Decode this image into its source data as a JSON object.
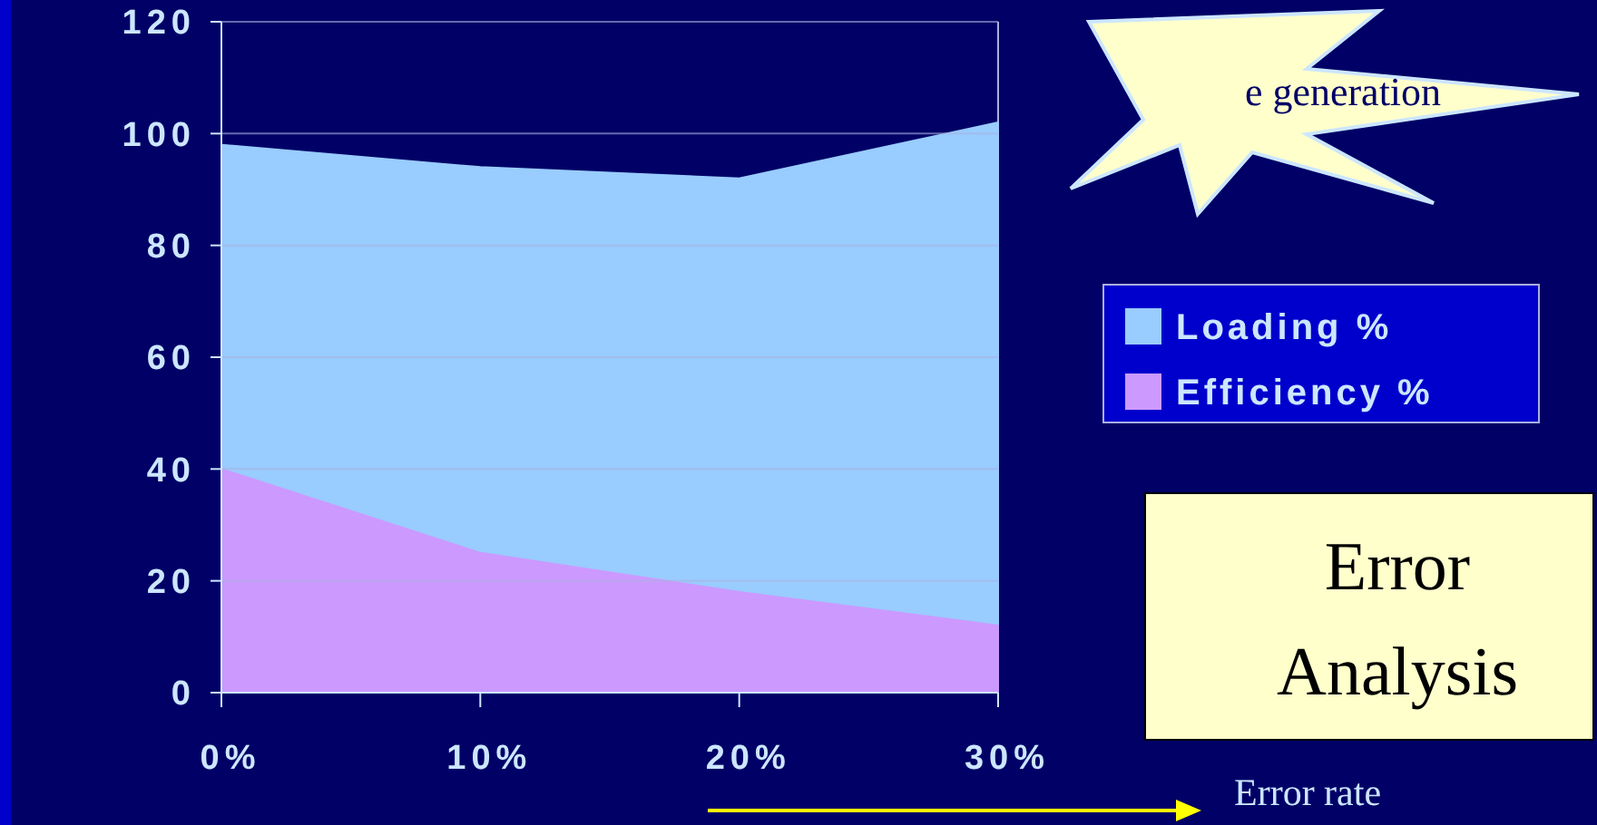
{
  "chart_data": {
    "type": "area",
    "categories": [
      "0%",
      "10%",
      "20%",
      "30%"
    ],
    "series": [
      {
        "name": "Loading %",
        "color": "#99ccff",
        "values": [
          98,
          94,
          92,
          102
        ]
      },
      {
        "name": "Efficiency %",
        "color": "#cc99ff",
        "values": [
          40,
          25,
          18,
          12
        ]
      }
    ],
    "ylim": [
      0,
      120
    ],
    "yticks": [
      0,
      20,
      40,
      60,
      80,
      100,
      120
    ],
    "grid": "y",
    "legend": "right",
    "xlabel": "Error rate",
    "annotations": [
      "e generation",
      "Error Analysis"
    ]
  }
}
